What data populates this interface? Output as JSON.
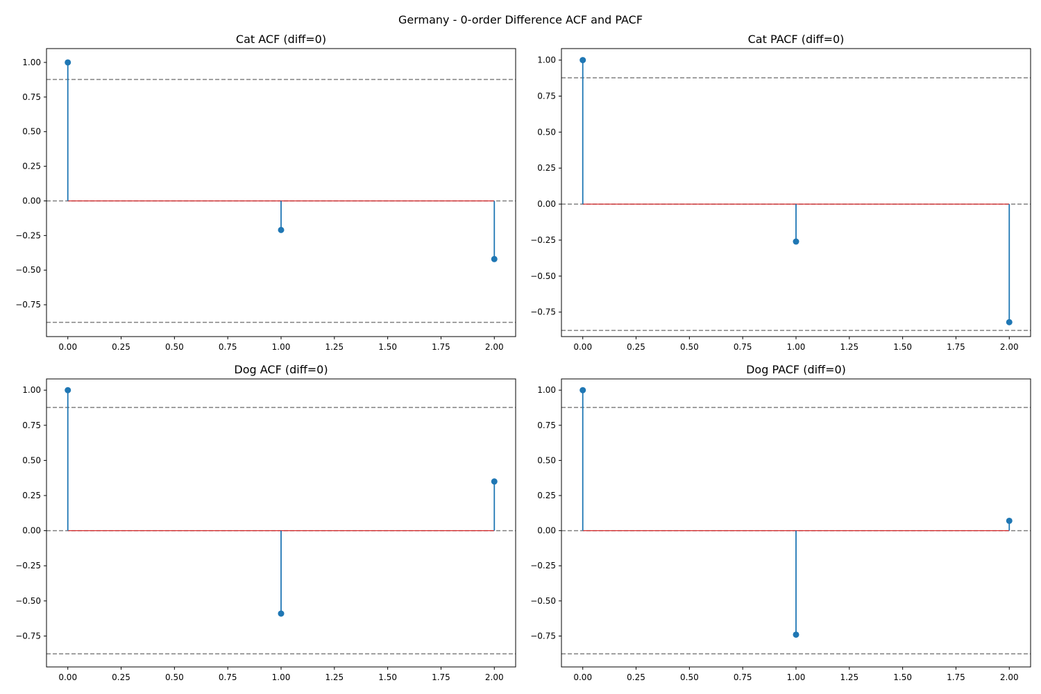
{
  "figure": {
    "title": "Germany - 0-order Difference ACF and PACF"
  },
  "colors": {
    "stem": "#1f77b4",
    "baseline": "#d62728",
    "conf_band": "#808080",
    "axes": "#000000"
  },
  "chart_data": [
    {
      "type": "stem",
      "title": "Cat ACF (diff=0)",
      "x": [
        0,
        1,
        2
      ],
      "values": [
        1.0,
        -0.21,
        -0.42
      ],
      "conf_interval": [
        -0.877,
        0.877
      ],
      "xlim": [
        -0.1,
        2.1
      ],
      "ylim": [
        -0.98,
        1.1
      ],
      "xticks": [
        "0.00",
        "0.25",
        "0.50",
        "0.75",
        "1.00",
        "1.25",
        "1.50",
        "1.75",
        "2.00"
      ],
      "yticks": [
        "-0.75",
        "-0.50",
        "-0.25",
        "0.00",
        "0.25",
        "0.50",
        "0.75",
        "1.00"
      ],
      "grid": false
    },
    {
      "type": "stem",
      "title": "Cat PACF (diff=0)",
      "x": [
        0,
        1,
        2
      ],
      "values": [
        1.0,
        -0.26,
        -0.82
      ],
      "conf_interval": [
        -0.877,
        0.877
      ],
      "xlim": [
        -0.1,
        2.1
      ],
      "ylim": [
        -0.92,
        1.08
      ],
      "xticks": [
        "0.00",
        "0.25",
        "0.50",
        "0.75",
        "1.00",
        "1.25",
        "1.50",
        "1.75",
        "2.00"
      ],
      "yticks": [
        "-0.75",
        "-0.50",
        "-0.25",
        "0.00",
        "0.25",
        "0.50",
        "0.75",
        "1.00"
      ],
      "grid": false
    },
    {
      "type": "stem",
      "title": "Dog ACF (diff=0)",
      "x": [
        0,
        1,
        2
      ],
      "values": [
        1.0,
        -0.59,
        0.35
      ],
      "conf_interval": [
        -0.877,
        0.877
      ],
      "xlim": [
        -0.1,
        2.1
      ],
      "ylim": [
        -0.97,
        1.08
      ],
      "xticks": [
        "0.00",
        "0.25",
        "0.50",
        "0.75",
        "1.00",
        "1.25",
        "1.50",
        "1.75",
        "2.00"
      ],
      "yticks": [
        "-0.75",
        "-0.50",
        "-0.25",
        "0.00",
        "0.25",
        "0.50",
        "0.75",
        "1.00"
      ],
      "grid": false
    },
    {
      "type": "stem",
      "title": "Dog PACF (diff=0)",
      "x": [
        0,
        1,
        2
      ],
      "values": [
        1.0,
        -0.74,
        0.07
      ],
      "conf_interval": [
        -0.877,
        0.877
      ],
      "xlim": [
        -0.1,
        2.1
      ],
      "ylim": [
        -0.97,
        1.08
      ],
      "xticks": [
        "0.00",
        "0.25",
        "0.50",
        "0.75",
        "1.00",
        "1.25",
        "1.50",
        "1.75",
        "2.00"
      ],
      "yticks": [
        "-0.75",
        "-0.50",
        "-0.25",
        "0.00",
        "0.25",
        "0.50",
        "0.75",
        "1.00"
      ],
      "grid": false
    }
  ]
}
